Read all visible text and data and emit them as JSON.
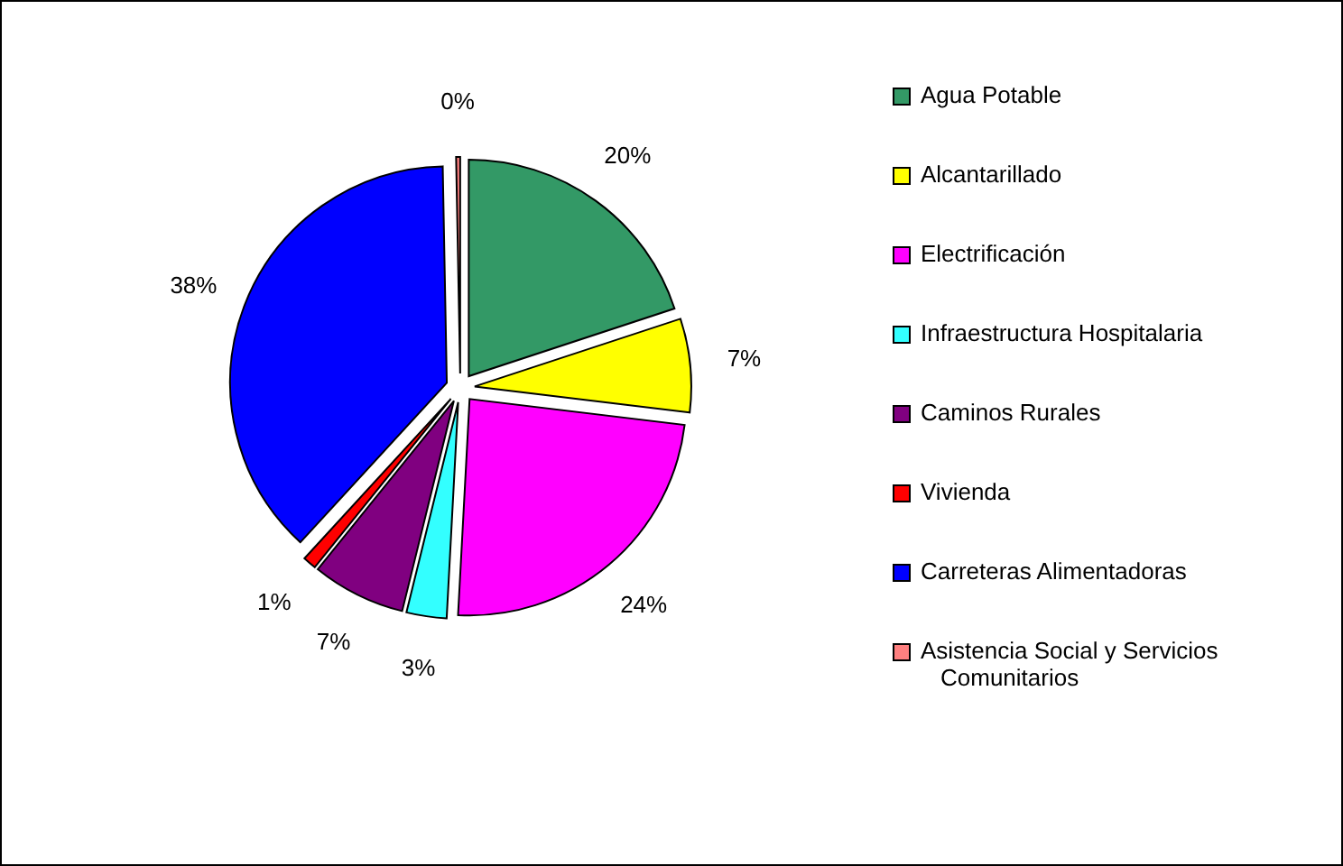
{
  "chart_data": {
    "type": "pie",
    "categories": [
      "Agua Potable",
      "Alcantarillado",
      "Electrificación",
      "Infraestructura Hospitalaria",
      "Caminos Rurales",
      "Vivienda",
      "Carreteras Alimentadoras",
      "Asistencia Social y Servicios Comunitarios"
    ],
    "values": [
      20,
      7,
      24,
      3,
      7,
      1,
      38,
      0.3
    ],
    "value_labels": [
      "20%",
      "7%",
      "24%",
      "3%",
      "7%",
      "1%",
      "38%",
      "0%"
    ],
    "colors": [
      "#339966",
      "#ffff00",
      "#ff00ff",
      "#33ffff",
      "#800080",
      "#ff0000",
      "#0000ff",
      "#ff8080"
    ],
    "legend": "right"
  }
}
